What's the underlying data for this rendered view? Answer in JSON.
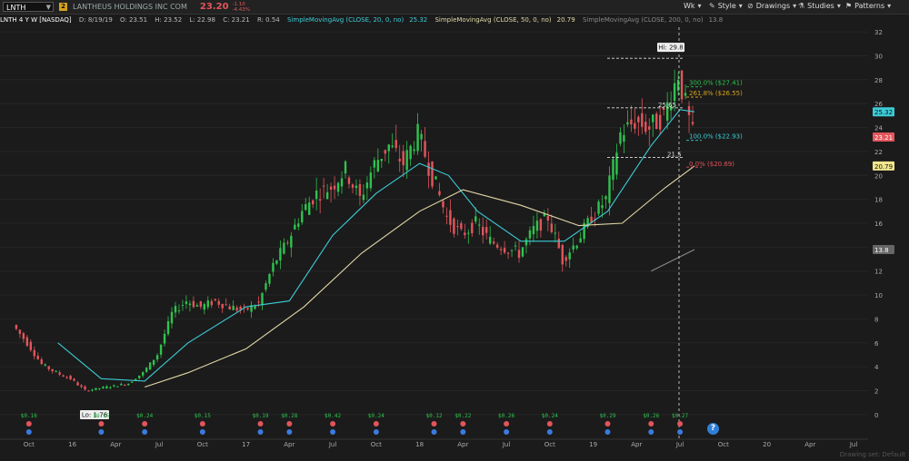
{
  "toolbar": {
    "symbol": "LNTH",
    "badge": "2",
    "company": "LANTHEUS HOLDINGS INC COM",
    "last_price": "23.20",
    "change": "-1.10",
    "change_pct": "-4.43%",
    "period_label": "Wk",
    "style_label": "Style",
    "drawings_label": "Drawings",
    "studies_label": "Studies",
    "patterns_label": "Patterns"
  },
  "infobar": {
    "title": "LNTH 4 Y W [NASDAQ]",
    "date": "D: 8/19/19",
    "open": "O: 23.51",
    "high": "H: 23.52",
    "low": "L: 22.98",
    "close": "C: 23.21",
    "range": "R: 0.54",
    "sma20_label": "SimpleMovingAvg (CLOSE, 20, 0, no)",
    "sma20_value": "25.32",
    "sma50_label": "SimpleMovingAvg (CLOSE, 50, 0, no)",
    "sma50_value": "20.79",
    "sma200_label": "SimpleMovingAvg (CLOSE, 200, 0, no)",
    "sma200_value": "13.8"
  },
  "colors": {
    "up": "#2fc24e",
    "down": "#e2555b",
    "sma20": "#3ccbd6",
    "sma50": "#e2d8a6",
    "sma200": "#888888",
    "fib_300": "#2fc24e",
    "fib_261": "#d6a21e",
    "fib_100": "#3ccbd6",
    "fib_0": "#e2555b"
  },
  "chart_data": {
    "type": "line",
    "title": "LNTH 4 Y W [NASDAQ]",
    "ylim": [
      -1,
      33
    ],
    "y_ticks": [
      "0",
      "2",
      "4",
      "6",
      "8",
      "10",
      "12",
      "14",
      "16",
      "18",
      "20",
      "22",
      "24",
      "26",
      "28",
      "30",
      "32"
    ],
    "x_ticks": [
      "Oct",
      "16",
      "Apr",
      "Jul",
      "Oct",
      "17",
      "Apr",
      "Jul",
      "Oct",
      "18",
      "Apr",
      "Jul",
      "Oct",
      "19",
      "Apr",
      "Jul",
      "Oct",
      "20",
      "Apr",
      "Jul"
    ],
    "price_series": [
      {
        "date": "2015-09",
        "close": 7.5
      },
      {
        "date": "2015-10",
        "close": 6.0
      },
      {
        "date": "2015-11",
        "close": 4.2
      },
      {
        "date": "2015-12",
        "close": 3.5
      },
      {
        "date": "2016-01",
        "close": 3.0
      },
      {
        "date": "2016-02",
        "close": 2.0
      },
      {
        "date": "2016-03",
        "close": 2.2
      },
      {
        "date": "2016-04",
        "close": 2.4
      },
      {
        "date": "2016-05",
        "close": 2.6
      },
      {
        "date": "2016-06",
        "close": 3.5
      },
      {
        "date": "2016-07",
        "close": 5.0
      },
      {
        "date": "2016-08",
        "close": 8.5
      },
      {
        "date": "2016-09",
        "close": 9.5
      },
      {
        "date": "2016-10",
        "close": 9.0
      },
      {
        "date": "2016-11",
        "close": 9.5
      },
      {
        "date": "2016-12",
        "close": 9.0
      },
      {
        "date": "2017-01",
        "close": 8.7
      },
      {
        "date": "2017-02",
        "close": 9.3
      },
      {
        "date": "2017-03",
        "close": 12.5
      },
      {
        "date": "2017-04",
        "close": 14.5
      },
      {
        "date": "2017-05",
        "close": 17.0
      },
      {
        "date": "2017-06",
        "close": 18.5
      },
      {
        "date": "2017-07",
        "close": 19.0
      },
      {
        "date": "2017-08",
        "close": 20.5
      },
      {
        "date": "2017-09",
        "close": 18.0
      },
      {
        "date": "2017-10",
        "close": 21.0
      },
      {
        "date": "2017-11",
        "close": 22.5
      },
      {
        "date": "2017-12",
        "close": 21.0
      },
      {
        "date": "2018-01",
        "close": 23.5
      },
      {
        "date": "2018-02",
        "close": 20.0
      },
      {
        "date": "2018-03",
        "close": 16.5
      },
      {
        "date": "2018-04",
        "close": 15.0
      },
      {
        "date": "2018-05",
        "close": 16.0
      },
      {
        "date": "2018-06",
        "close": 14.5
      },
      {
        "date": "2018-07",
        "close": 14.0
      },
      {
        "date": "2018-08",
        "close": 13.5
      },
      {
        "date": "2018-09",
        "close": 15.5
      },
      {
        "date": "2018-10",
        "close": 16.5
      },
      {
        "date": "2018-11",
        "close": 13.0
      },
      {
        "date": "2018-12",
        "close": 14.5
      },
      {
        "date": "2019-01",
        "close": 16.5
      },
      {
        "date": "2019-02",
        "close": 18.0
      },
      {
        "date": "2019-03",
        "close": 23.5
      },
      {
        "date": "2019-04",
        "close": 24.5
      },
      {
        "date": "2019-05",
        "close": 24.0
      },
      {
        "date": "2019-06",
        "close": 25.0
      },
      {
        "date": "2019-07",
        "close": 28.5
      },
      {
        "date": "2019-08",
        "close": 23.2
      }
    ],
    "sma20": [
      [
        "2015-12",
        6.0
      ],
      [
        "2016-03",
        3.0
      ],
      [
        "2016-06",
        2.8
      ],
      [
        "2016-09",
        6.0
      ],
      [
        "2017-01",
        9.0
      ],
      [
        "2017-04",
        9.5
      ],
      [
        "2017-07",
        15.0
      ],
      [
        "2017-10",
        18.5
      ],
      [
        "2018-01",
        21.0
      ],
      [
        "2018-03",
        20.0
      ],
      [
        "2018-05",
        17.0
      ],
      [
        "2018-08",
        14.5
      ],
      [
        "2018-11",
        14.5
      ],
      [
        "2019-02",
        17.0
      ],
      [
        "2019-05",
        22.5
      ],
      [
        "2019-07",
        25.5
      ],
      [
        "2019-08",
        25.32
      ]
    ],
    "sma50": [
      [
        "2016-06",
        2.3
      ],
      [
        "2016-09",
        3.5
      ],
      [
        "2017-01",
        5.5
      ],
      [
        "2017-05",
        9.0
      ],
      [
        "2017-09",
        13.5
      ],
      [
        "2018-01",
        17.0
      ],
      [
        "2018-04",
        18.8
      ],
      [
        "2018-08",
        17.5
      ],
      [
        "2018-12",
        15.8
      ],
      [
        "2019-03",
        16.0
      ],
      [
        "2019-06",
        19.0
      ],
      [
        "2019-08",
        20.79
      ]
    ],
    "sma200": [
      [
        "2019-05",
        12.0
      ],
      [
        "2019-08",
        13.8
      ]
    ],
    "annotations": {
      "high_label": "Hi: 29.8",
      "low_label": "Lo: 1.76",
      "fib_300": "300.0%  ($27.41)",
      "fib_261": "261.8%  ($26.55)",
      "fib_100": "100.0%  ($22.93)",
      "fib_0": "0.0%  ($20.69)",
      "level_25_65": "25.65",
      "level_21_5": "21.5"
    },
    "axis_tags": {
      "sma20_tag": "25.32",
      "price_tag": "23.21",
      "sma50_tag": "20.79",
      "sma200_tag": "13.8"
    },
    "dividends": [
      {
        "date": "2015-10",
        "label": "$0.16"
      },
      {
        "date": "2016-03",
        "label": "$0.15"
      },
      {
        "date": "2016-06",
        "label": "$0.24"
      },
      {
        "date": "2016-10",
        "label": "$0.15"
      },
      {
        "date": "2017-02",
        "label": "$0.19"
      },
      {
        "date": "2017-04",
        "label": "$0.28"
      },
      {
        "date": "2017-07",
        "label": "$0.42"
      },
      {
        "date": "2017-10",
        "label": "$0.24"
      },
      {
        "date": "2018-02",
        "label": "$0.12"
      },
      {
        "date": "2018-04",
        "label": "$0.22"
      },
      {
        "date": "2018-07",
        "label": "$0.26"
      },
      {
        "date": "2018-10",
        "label": "$0.24"
      },
      {
        "date": "2019-02",
        "label": "$0.29"
      },
      {
        "date": "2019-05",
        "label": "$0.26"
      },
      {
        "date": "2019-07",
        "label": "$0.27"
      }
    ]
  },
  "status": {
    "drawing_set": "Drawing set: Default"
  }
}
